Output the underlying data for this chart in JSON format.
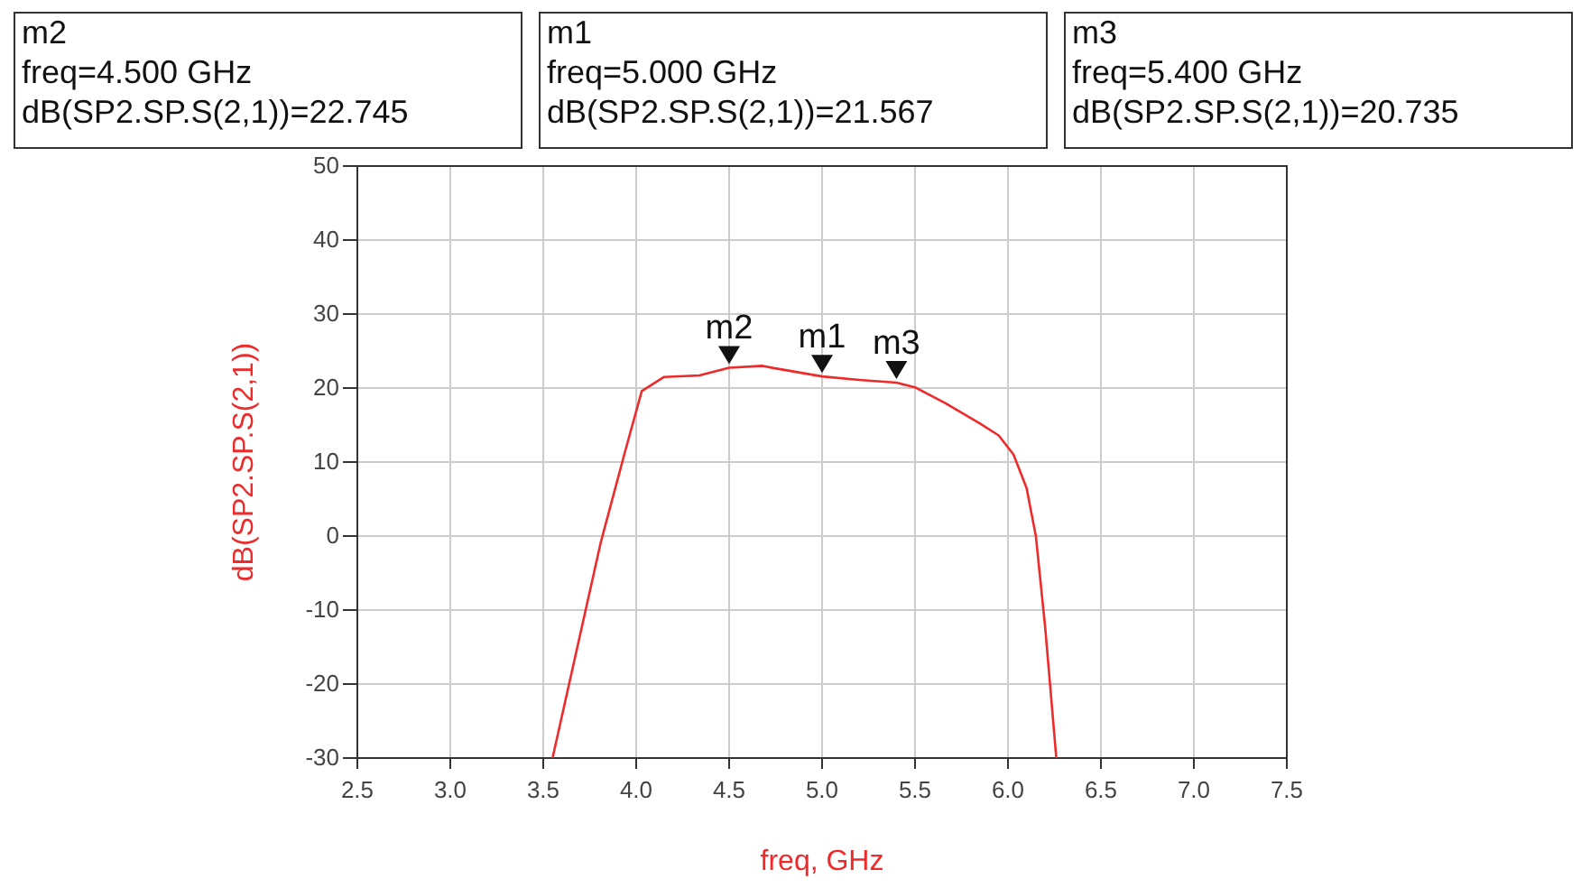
{
  "chart_data": {
    "type": "line",
    "xlabel": "freq, GHz",
    "ylabel": "dB(SP2.SP.S(2,1))",
    "x": [
      3.55,
      3.81,
      3.94,
      4.03,
      4.15,
      4.34,
      4.5,
      4.68,
      4.74,
      5.0,
      5.2,
      5.4,
      5.5,
      5.66,
      5.85,
      5.95,
      6.03,
      6.1,
      6.15,
      6.2,
      6.26
    ],
    "series": [
      {
        "color": "#ee2a2a",
        "values": [
          -30,
          -0.8,
          11.4,
          19.6,
          21.5,
          21.7,
          22.745,
          23.0,
          22.7,
          21.567,
          21.1,
          20.735,
          20.1,
          18.0,
          15.2,
          13.6,
          11.0,
          6.5,
          0,
          -12.3,
          -30
        ]
      }
    ],
    "xlim": [
      2.5,
      7.5
    ],
    "xticks": [
      2.5,
      {
        "value": 3,
        "label": "3.0"
      },
      3.5,
      {
        "value": 4,
        "label": "4.0"
      },
      4.5,
      {
        "value": 5,
        "label": "5.0"
      },
      5.5,
      {
        "value": 6,
        "label": "6.0"
      },
      6.5,
      {
        "value": 7,
        "label": "7.0"
      },
      7.5
    ],
    "ylim": [
      -30,
      50
    ],
    "yticks": [
      -30,
      -20,
      -10,
      0,
      10,
      20,
      30,
      40,
      50
    ],
    "grid": true,
    "line_style": "solid",
    "annotations": [
      {
        "text": "m2",
        "x": 4.5,
        "y": 22.745
      },
      {
        "text": "m1",
        "x": 5.0,
        "y": 21.567
      },
      {
        "text": "m3",
        "x": 5.4,
        "y": 20.735
      },
      "m2\nfreq=4.500 GHz\ndB(SP2.SP.S(2,1))=22.745",
      "m1\nfreq=5.000 GHz\ndB(SP2.SP.S(2,1))=21.567",
      "m3\nfreq=5.400 GHz\ndB(SP2.SP.S(2,1))=20.735"
    ]
  }
}
